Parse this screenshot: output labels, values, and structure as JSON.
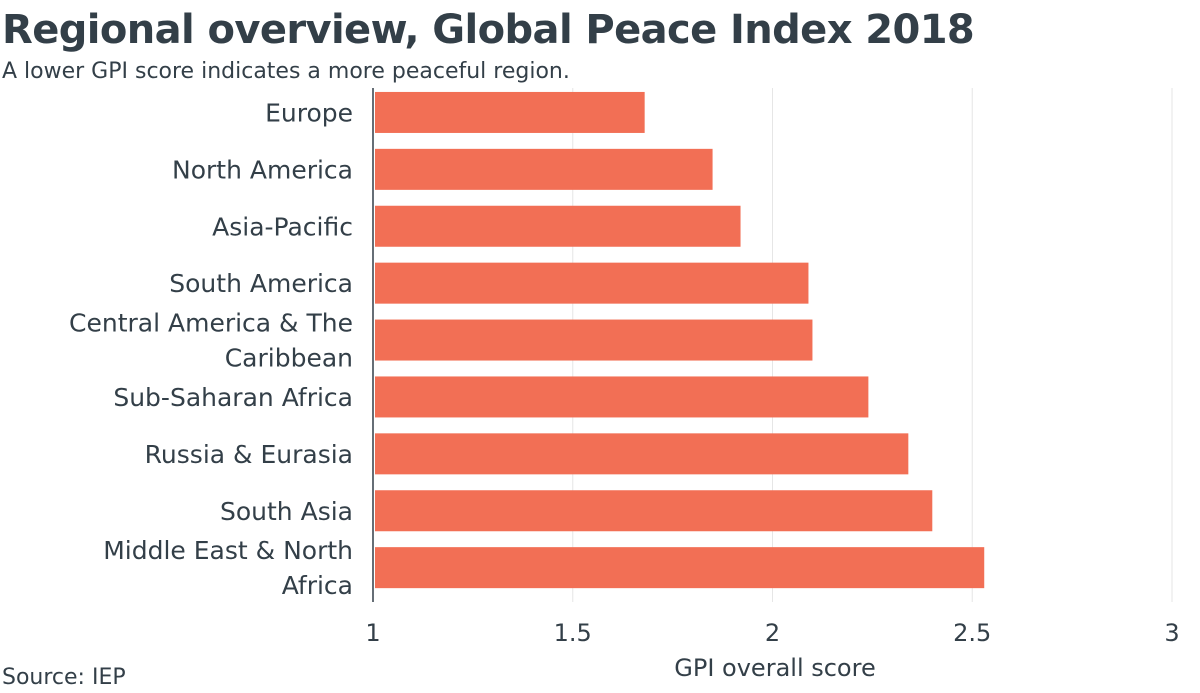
{
  "header": {
    "title": "Regional overview, Global Peace Index 2018",
    "subtitle": "A lower GPI score indicates a more peaceful region."
  },
  "footer": {
    "source": "Source: IEP"
  },
  "colors": {
    "bar": "#f26f55",
    "gridline": "#e6e6e6",
    "axis": "#333f48",
    "text": "#333f48"
  },
  "chart_data": {
    "type": "bar",
    "orientation": "horizontal",
    "title": "Regional overview, Global Peace Index 2018",
    "subtitle": "A lower GPI score indicates a more peaceful region.",
    "xlabel": "GPI overall score",
    "ylabel": "",
    "xlim": [
      1,
      3
    ],
    "xticks": [
      1,
      1.5,
      2,
      2.5,
      3
    ],
    "xtick_labels": [
      "1",
      "1.5",
      "2",
      "2.5",
      "3"
    ],
    "grid": true,
    "categories": [
      [
        "Europe"
      ],
      [
        "North America"
      ],
      [
        "Asia-Pacific"
      ],
      [
        "South America"
      ],
      [
        "Central America & The",
        "Caribbean"
      ],
      [
        "Sub-Saharan Africa"
      ],
      [
        "Russia & Eurasia"
      ],
      [
        "South Asia"
      ],
      [
        "Middle East & North",
        "Africa"
      ]
    ],
    "values": [
      1.68,
      1.85,
      1.92,
      2.09,
      2.1,
      2.24,
      2.34,
      2.4,
      2.53
    ]
  }
}
